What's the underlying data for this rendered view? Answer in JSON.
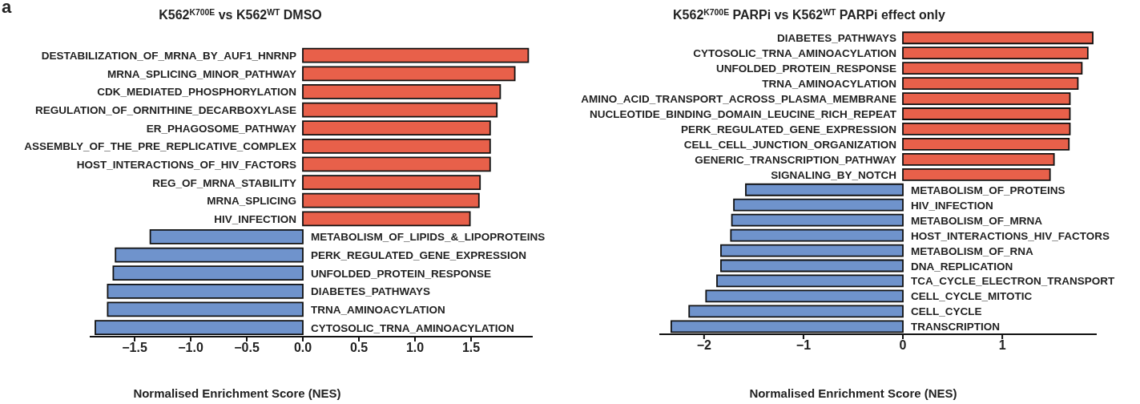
{
  "chart_data": [
    {
      "type": "bar",
      "orientation": "horizontal",
      "title": "K562$^{K700E}$ vs K562$^{WT}$ DMSO",
      "xlabel": "Normalised Enrichment Score (NES)",
      "annotations": [
        "a"
      ],
      "categories": [
        "DESTABILIZATION_OF_MRNA_BY_AUF1_HNRNP",
        "MRNA_SPLICING_MINOR_PATHWAY",
        "CDK_MEDIATED_PHOSPHORYLATION",
        "REGULATION_OF_ORNITHINE_DECARBOXYLASE",
        "ER_PHAGOSOME_PATHWAY",
        "ASSEMBLY_OF_THE_PRE_REPLICATIVE_COMPLEX",
        "HOST_INTERACTIONS_OF_HIV_FACTORS",
        "REG_OF_MRNA_STABILITY",
        "MRNA_SPLICING",
        "HIV_INFECTION",
        "METABOLISM_OF_LIPIDS_&_LIPOPROTEINS",
        "PERK_REGULATED_GENE_EXPRESSION",
        "UNFOLDED_PROTEIN_RESPONSE",
        "DIABETES_PATHWAYS",
        "TRNA_AMINOACYLATION",
        "CYTOSOLIC_TRNA_AMINOACYLATION"
      ],
      "values": [
        2.01,
        1.89,
        1.76,
        1.73,
        1.67,
        1.67,
        1.67,
        1.58,
        1.57,
        1.49,
        -1.36,
        -1.67,
        -1.69,
        -1.74,
        -1.74,
        -1.85
      ],
      "colors": [
        "#e8604a",
        "#e8604a",
        "#e8604a",
        "#e8604a",
        "#e8604a",
        "#e8604a",
        "#e8604a",
        "#e8604a",
        "#e8604a",
        "#e8604a",
        "#6f93cc",
        "#6f93cc",
        "#6f93cc",
        "#6f93cc",
        "#6f93cc",
        "#6f93cc"
      ],
      "xlim": [
        -1.9,
        2.05
      ],
      "xticks": [
        {
          "value": -1.5,
          "label": "−1.5"
        },
        {
          "value": -1,
          "label": "−1.0"
        },
        {
          "value": -0.5,
          "label": "−0.5"
        },
        {
          "value": 0,
          "label": "0.0"
        },
        {
          "value": 0.5,
          "label": "0.5"
        },
        {
          "value": 1,
          "label": "1.0"
        },
        {
          "value": 1.5,
          "label": "1.5"
        }
      ],
      "grid": false,
      "legend": false
    },
    {
      "type": "bar",
      "orientation": "horizontal",
      "title": "K562$^{K700E}$ PARPi vs K562$^{WT}$ PARPi effect only",
      "xlabel": "Normalised Enrichment Score (NES)",
      "categories": [
        "DIABETES_PATHWAYS",
        "CYTOSOLIC_TRNA_AMINOACYLATION",
        "UNFOLDED_PROTEIN_RESPONSE",
        "TRNA_AMINOACYLATION",
        "AMINO_ACID_TRANSPORT_ACROSS_PLASMA_MEMBRANE",
        "NUCLEOTIDE_BINDING_DOMAIN_LEUCINE_RICH_REPEAT",
        "PERK_REGULATED_GENE_EXPRESSION",
        "CELL_CELL_JUNCTION_ORGANIZATION",
        "GENERIC_TRANSCRIPTION_PATHWAY",
        "SIGNALING_BY_NOTCH",
        "METABOLISM_OF_PROTEINS",
        "HIV_INFECTION",
        "METABOLISM_OF_MRNA",
        "HOST_INTERACTIONS_HIV_FACTORS",
        "METABOLISM_OF_RNA",
        "DNA_REPLICATION",
        "TCA_CYCLE_ELECTRON_TRANSPORT",
        "CELL_CYCLE_MITOTIC",
        "CELL_CYCLE",
        "TRANSCRIPTION"
      ],
      "values": [
        1.91,
        1.86,
        1.8,
        1.76,
        1.68,
        1.68,
        1.68,
        1.67,
        1.52,
        1.48,
        -1.58,
        -1.7,
        -1.72,
        -1.73,
        -1.83,
        -1.83,
        -1.87,
        -1.98,
        -2.15,
        -2.33
      ],
      "colors": [
        "#e8604a",
        "#e8604a",
        "#e8604a",
        "#e8604a",
        "#e8604a",
        "#e8604a",
        "#e8604a",
        "#e8604a",
        "#e8604a",
        "#e8604a",
        "#6f93cc",
        "#6f93cc",
        "#6f93cc",
        "#6f93cc",
        "#6f93cc",
        "#6f93cc",
        "#6f93cc",
        "#6f93cc",
        "#6f93cc",
        "#6f93cc"
      ],
      "xlim": [
        -2.45,
        1.95
      ],
      "xticks": [
        {
          "value": -2,
          "label": "−2"
        },
        {
          "value": -1,
          "label": "−1"
        },
        0,
        1
      ],
      "grid": false,
      "legend": false
    }
  ]
}
